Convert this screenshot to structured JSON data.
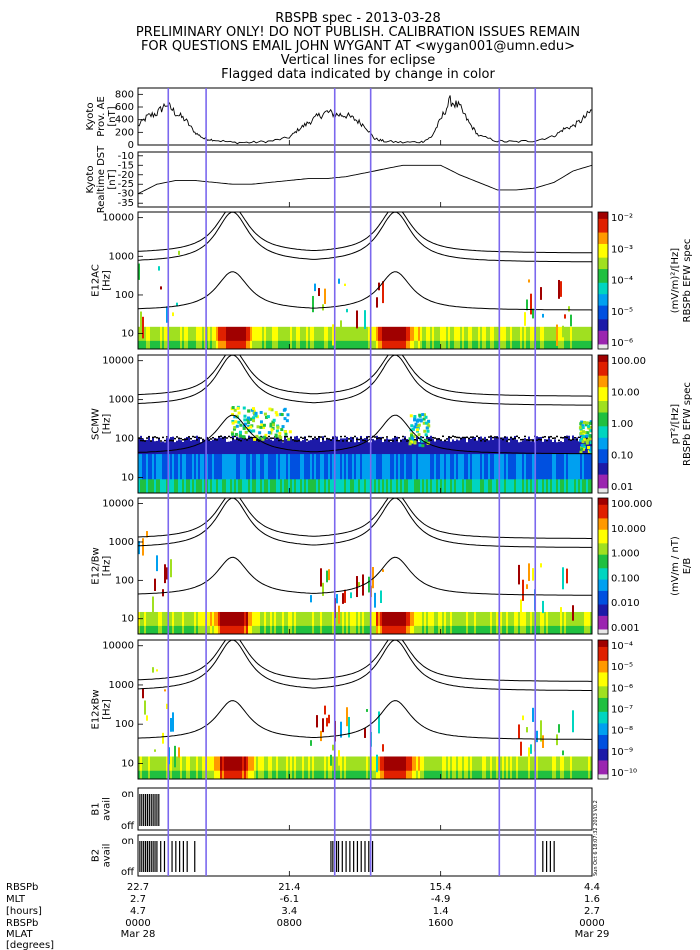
{
  "title_lines": [
    "RBSPB spec - 2013-03-28",
    "PRELIMINARY ONLY! DO NOT PUBLISH. CALIBRATION ISSUES REMAIN",
    "FOR QUESTIONS EMAIL JOHN WYGANT AT <wygan001@umn.edu>",
    "Vertical lines for eclipse",
    "Flagged data indicated by change in color"
  ],
  "time_axis": {
    "range_hours": [
      0,
      24
    ],
    "ticks_hours": [
      0,
      8,
      16,
      24
    ],
    "eclipse_lines_hours": [
      1.6,
      3.6,
      10.4,
      12.3,
      19.1,
      21.0
    ]
  },
  "colors": {
    "eclipse_line": "#7b68ee",
    "trace": "#000000",
    "background": "#ffffff"
  },
  "chart_data": [
    {
      "id": "ae",
      "type": "line",
      "ylabel": [
        "Kyoto",
        "Prov. AE",
        "[nT]"
      ],
      "yticks": [
        "800",
        "600",
        "400",
        "200",
        "0"
      ],
      "ylim": [
        0,
        900
      ],
      "x_hours": [
        0,
        0.5,
        1,
        1.5,
        2,
        2.5,
        3,
        3.5,
        4,
        5,
        6,
        7,
        8,
        8.5,
        9,
        9.5,
        10,
        10.5,
        11,
        11.5,
        12,
        12.5,
        13,
        14,
        15,
        15.5,
        16,
        16.5,
        17,
        17.5,
        18,
        19,
        20,
        21,
        22,
        22.5,
        23,
        23.5,
        24
      ],
      "values": [
        300,
        450,
        500,
        650,
        500,
        400,
        200,
        100,
        80,
        40,
        40,
        60,
        120,
        250,
        350,
        450,
        520,
        480,
        470,
        400,
        300,
        100,
        60,
        40,
        50,
        120,
        400,
        700,
        600,
        350,
        150,
        60,
        50,
        70,
        140,
        250,
        300,
        400,
        550
      ]
    },
    {
      "id": "dst",
      "type": "line",
      "ylabel": [
        "Kyoto",
        "Realtime DST",
        "[nT]"
      ],
      "yticks": [
        "-10",
        "-15",
        "-20",
        "-25",
        "-30",
        "-35"
      ],
      "ylim": [
        -37,
        -8
      ],
      "x_hours": [
        0,
        1,
        2,
        3,
        4,
        5,
        6,
        7,
        8,
        9,
        10,
        11,
        12,
        13,
        14,
        15,
        16,
        17,
        18,
        19,
        20,
        21,
        22,
        23,
        24
      ],
      "values": [
        -30,
        -25,
        -23,
        -23,
        -24,
        -25,
        -25,
        -24,
        -23,
        -22,
        -22,
        -21,
        -19,
        -17,
        -15,
        -15,
        -15,
        -20,
        -24,
        -28,
        -28,
        -27,
        -24,
        -18,
        -15
      ]
    },
    {
      "id": "e12ac",
      "type": "heatmap",
      "ylabel": [
        "E12AC",
        "[Hz]"
      ],
      "yticks": [
        "10000",
        "1000",
        "100",
        "10"
      ],
      "cbar_label": [
        "RBSPb EFW spec",
        "(mV/m)²/[Hz]"
      ],
      "cbar_ticks": [
        "10⁻²",
        "10⁻³",
        "10⁻⁴",
        "10⁻⁵",
        "10⁻⁶"
      ]
    },
    {
      "id": "scmw",
      "type": "heatmap",
      "ylabel": [
        "SCMW",
        "[Hz]"
      ],
      "yticks": [
        "10000",
        "1000",
        "100",
        "10"
      ],
      "cbar_label": [
        "RBSPb EFW spec",
        "pT²/[Hz]"
      ],
      "cbar_ticks": [
        "100.00",
        "10.00",
        "1.00",
        "0.10",
        "0.01"
      ]
    },
    {
      "id": "e12bw",
      "type": "heatmap",
      "ylabel": [
        "E12/Bw",
        "[Hz]"
      ],
      "yticks": [
        "10000",
        "1000",
        "100",
        "10"
      ],
      "cbar_label": [
        "E/B",
        "(mV/m / nT)"
      ],
      "cbar_ticks": [
        "100.000",
        "10.000",
        "1.000",
        "0.100",
        "0.010",
        "0.001"
      ]
    },
    {
      "id": "e12xbw",
      "type": "heatmap",
      "ylabel": [
        "E12xBw",
        "[Hz]"
      ],
      "yticks": [
        "10000",
        "1000",
        "100",
        "10"
      ],
      "cbar_ticks": [
        "10⁻⁴",
        "10⁻⁵",
        "10⁻⁶",
        "10⁻⁷",
        "10⁻⁸",
        "10⁻⁹",
        "10⁻¹⁰"
      ]
    },
    {
      "id": "b1",
      "type": "flag",
      "ylabel": [
        "B1",
        "avail"
      ],
      "yticks": [
        "on",
        "off"
      ],
      "on_hours": [
        0.1,
        0.2,
        0.3,
        0.4,
        0.5,
        0.6,
        0.7,
        0.8,
        0.9,
        1.0,
        1.1
      ]
    },
    {
      "id": "b2",
      "type": "flag",
      "ylabel": [
        "B2",
        "avail"
      ],
      "yticks": [
        "on",
        "off"
      ],
      "on_hours": [
        0.1,
        0.2,
        0.3,
        0.4,
        0.5,
        0.6,
        0.7,
        0.8,
        0.9,
        1.0,
        1.2,
        1.4,
        1.6,
        1.8,
        2.0,
        2.2,
        2.4,
        2.6,
        3.0,
        10.2,
        10.3,
        10.4,
        10.5,
        10.6,
        10.8,
        11.0,
        11.2,
        11.4,
        11.6,
        11.8,
        12.0,
        12.2,
        12.4,
        21.4,
        21.6,
        21.8,
        22.0
      ]
    }
  ],
  "spectrogram_colorscale": [
    "#e8e8e8",
    "#9b25b0",
    "#1d1aa8",
    "#0050e0",
    "#00a0f0",
    "#00d5c0",
    "#20c040",
    "#a0e020",
    "#ffff00",
    "#ff9900",
    "#e02000",
    "#a00000"
  ],
  "stamp": "Sun Oct 6 18:07:32 2013 V0.2",
  "bottom_table": {
    "labels": [
      "RBSPb",
      "MLT",
      "[hours]",
      "RBSPb",
      "MLAT",
      "[degrees]"
    ],
    "columns": [
      {
        "mlt": "22.7",
        "mlat": "2.7",
        "hours": "4.7",
        "time": "0000",
        "date": "Mar 28"
      },
      {
        "mlt": "21.4",
        "mlat": "-6.1",
        "hours": "3.4",
        "time": "0800",
        "date": ""
      },
      {
        "mlt": "15.4",
        "mlat": "-4.9",
        "hours": "1.4",
        "time": "1600",
        "date": ""
      },
      {
        "mlt": "4.4",
        "mlat": "1.6",
        "hours": "2.7",
        "time": "0000",
        "date": "Mar 29"
      }
    ]
  }
}
